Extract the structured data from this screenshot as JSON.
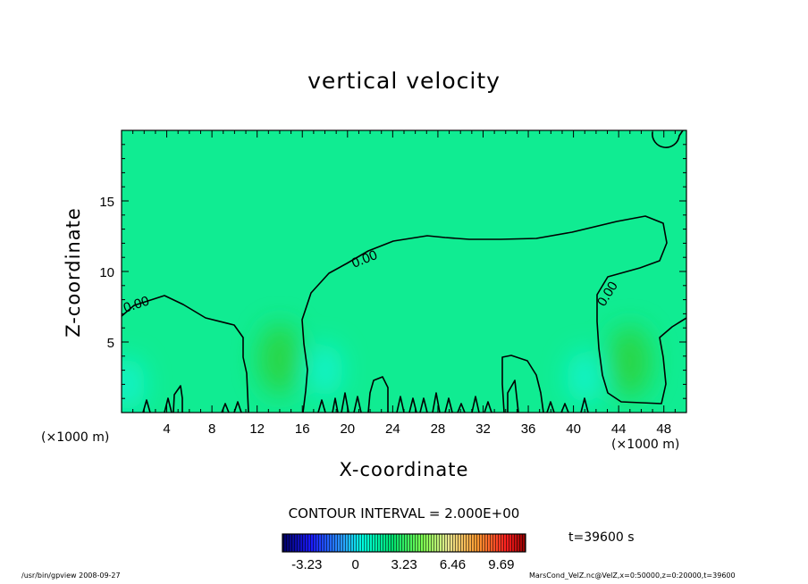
{
  "chart_data": {
    "type": "heatmap",
    "title": "vertical velocity",
    "xlabel": "X-coordinate",
    "ylabel": "Z-coordinate",
    "x_unit_label": "(×1000 m)",
    "x_unit_label_right": "(×1000 m)",
    "xlim": [
      0,
      50
    ],
    "ylim": [
      0,
      20
    ],
    "x_ticks": [
      "4",
      "8",
      "12",
      "16",
      "20",
      "24",
      "28",
      "32",
      "36",
      "40",
      "44",
      "48"
    ],
    "y_ticks": [
      "5",
      "10",
      "15"
    ],
    "contour_interval_text": "CONTOUR INTERVAL = 2.000E+00",
    "contour_labels": [
      "0.00",
      "0.00",
      "0.00"
    ],
    "colorbar_ticks": [
      "-3.23",
      "0",
      "3.23",
      "6.46",
      "9.69"
    ],
    "colorbar_range": [
      -4.85,
      11.3
    ],
    "background_color": "#10ec92",
    "features": [
      {
        "kind": "updraft",
        "x": 14,
        "z": 3.8
      },
      {
        "kind": "updraft",
        "x": 45,
        "z": 3.6
      },
      {
        "kind": "downdraft",
        "x": 41,
        "z": 2.5
      },
      {
        "kind": "downdraft",
        "x": 0.5,
        "z": 2.0
      },
      {
        "kind": "downdraft",
        "x": 18,
        "z": 3.0
      }
    ],
    "time_label": "t=39600 s"
  },
  "footer": {
    "left": "/usr/bin/gpview   2008-09-27",
    "right": "MarsCond_VelZ.nc@VelZ,x=0:50000,z=0:20000,t=39600"
  }
}
